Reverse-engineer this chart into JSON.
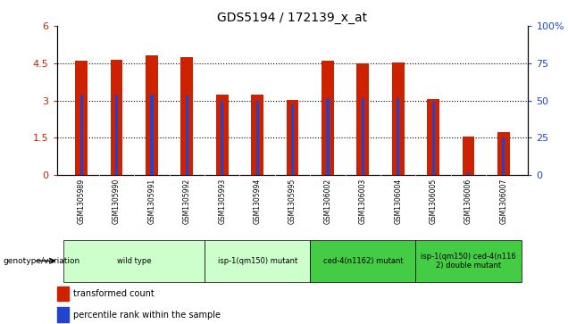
{
  "title": "GDS5194 / 172139_x_at",
  "samples": [
    "GSM1305989",
    "GSM1305990",
    "GSM1305991",
    "GSM1305992",
    "GSM1305993",
    "GSM1305994",
    "GSM1305995",
    "GSM1306002",
    "GSM1306003",
    "GSM1306004",
    "GSM1306005",
    "GSM1306006",
    "GSM1306007"
  ],
  "red_values": [
    4.6,
    4.65,
    4.8,
    4.75,
    3.25,
    3.25,
    3.02,
    4.6,
    4.5,
    4.52,
    3.05,
    1.55,
    1.72
  ],
  "blue_values": [
    3.22,
    3.22,
    3.22,
    3.22,
    3.0,
    3.0,
    2.85,
    3.1,
    3.1,
    3.1,
    2.95,
    0.1,
    1.5
  ],
  "ylim_left": [
    0,
    6
  ],
  "ylim_right": [
    0,
    100
  ],
  "yticks_left": [
    0,
    1.5,
    3.0,
    4.5,
    6.0
  ],
  "ytick_labels_left": [
    "0",
    "1.5",
    "3",
    "4.5",
    "6"
  ],
  "yticks_right": [
    0,
    25,
    50,
    75,
    100
  ],
  "ytick_labels_right": [
    "0",
    "25",
    "50",
    "75",
    "100%"
  ],
  "groups": [
    {
      "label": "wild type",
      "indices": [
        0,
        1,
        2,
        3
      ],
      "color": "#ccffcc"
    },
    {
      "label": "isp-1(qm150) mutant",
      "indices": [
        4,
        5,
        6
      ],
      "color": "#ccffcc"
    },
    {
      "label": "ced-4(n1162) mutant",
      "indices": [
        7,
        8,
        9
      ],
      "color": "#44cc44"
    },
    {
      "label": "isp-1(qm150) ced-4(n116\n2) double mutant",
      "indices": [
        10,
        11,
        12
      ],
      "color": "#44cc44"
    }
  ],
  "red_color": "#cc2200",
  "blue_color": "#2244cc",
  "legend_red": "transformed count",
  "legend_blue": "percentile rank within the sample",
  "genotype_label": "genotype/variation",
  "left_tick_color": "#cc2200",
  "right_tick_color": "#2244cc",
  "bar_width": 0.35,
  "blue_bar_width": 0.08
}
